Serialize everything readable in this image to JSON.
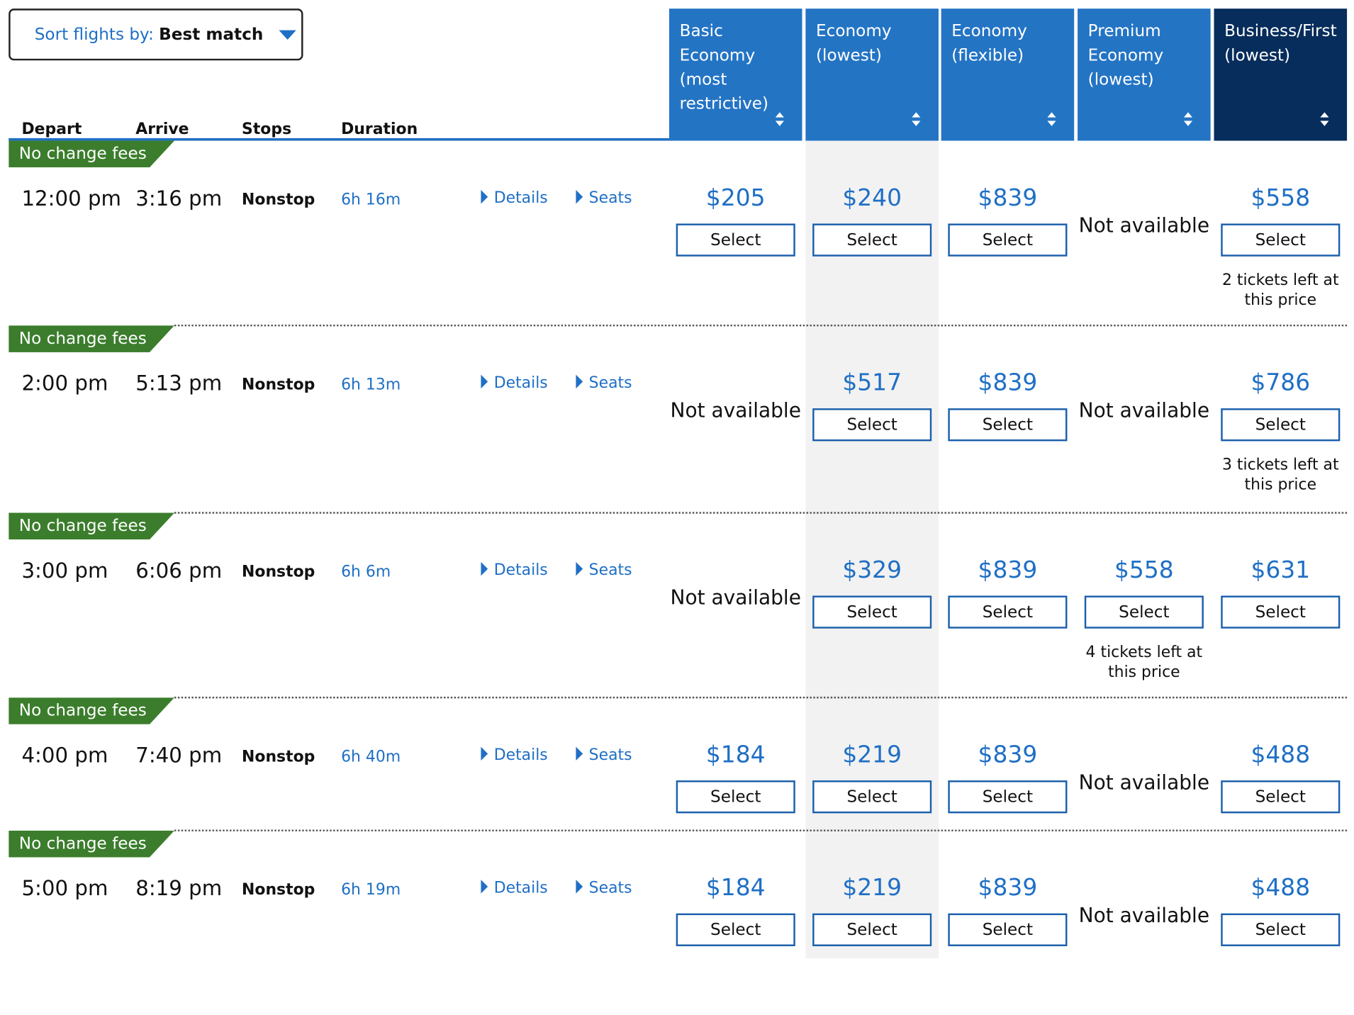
{
  "sort": {
    "label": "Sort flights by:",
    "value": "Best match"
  },
  "columns": {
    "depart": "Depart",
    "arrive": "Arrive",
    "stops": "Stops",
    "duration": "Duration"
  },
  "fare_headers": [
    [
      "Basic",
      "Economy",
      "(most",
      "restrictive)"
    ],
    [
      "Economy",
      "(lowest)"
    ],
    [
      "Economy",
      "(flexible)"
    ],
    [
      "Premium",
      "Economy",
      "(lowest)"
    ],
    [
      "Business/First",
      "(lowest)"
    ]
  ],
  "labels": {
    "details": "Details",
    "seats": "Seats",
    "select": "Select",
    "not_available": "Not available",
    "tickets_line2": "this price"
  },
  "flights": [
    {
      "badge": "No change fees",
      "depart": "12:00 pm",
      "arrive": "3:16 pm",
      "stops": "Nonstop",
      "duration": "6h 16m",
      "fares": [
        {
          "price": "$205"
        },
        {
          "price": "$240"
        },
        {
          "price": "$839"
        },
        {
          "price": null
        },
        {
          "price": "$558",
          "note": "2 tickets left at"
        }
      ]
    },
    {
      "badge": "No change fees",
      "depart": "2:00 pm",
      "arrive": "5:13 pm",
      "stops": "Nonstop",
      "duration": "6h 13m",
      "fares": [
        {
          "price": null
        },
        {
          "price": "$517"
        },
        {
          "price": "$839"
        },
        {
          "price": null
        },
        {
          "price": "$786",
          "note": "3 tickets left at"
        }
      ]
    },
    {
      "badge": "No change fees",
      "depart": "3:00 pm",
      "arrive": "6:06 pm",
      "stops": "Nonstop",
      "duration": "6h 6m",
      "fares": [
        {
          "price": null
        },
        {
          "price": "$329"
        },
        {
          "price": "$839"
        },
        {
          "price": "$558",
          "note": "4 tickets left at"
        },
        {
          "price": "$631"
        }
      ]
    },
    {
      "badge": "No change fees",
      "depart": "4:00 pm",
      "arrive": "7:40 pm",
      "stops": "Nonstop",
      "duration": "6h 40m",
      "fares": [
        {
          "price": "$184"
        },
        {
          "price": "$219"
        },
        {
          "price": "$839"
        },
        {
          "price": null
        },
        {
          "price": "$488"
        }
      ]
    },
    {
      "badge": "No change fees",
      "depart": "5:00 pm",
      "arrive": "8:19 pm",
      "stops": "Nonstop",
      "duration": "6h 19m",
      "fares": [
        {
          "price": "$184"
        },
        {
          "price": "$219"
        },
        {
          "price": "$839"
        },
        {
          "price": null
        },
        {
          "price": "$488"
        }
      ]
    }
  ],
  "colors": {
    "blue": "#2474c4",
    "dark_blue": "#062d5b",
    "green": "#3b7d2c",
    "link": "#1f6fc5"
  }
}
